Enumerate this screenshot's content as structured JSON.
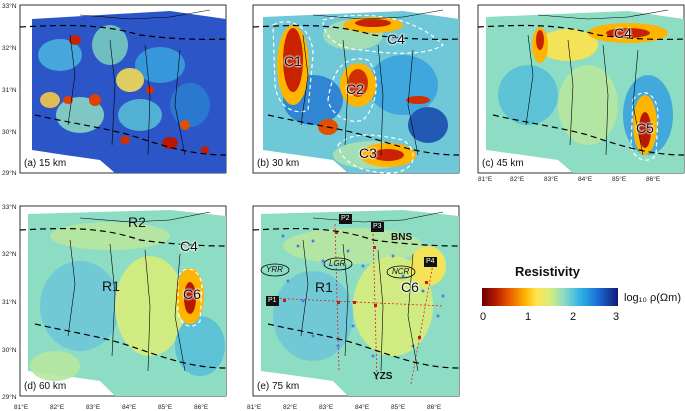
{
  "axes": {
    "lat_labels": [
      "33°N",
      "32°N",
      "31°N",
      "30°N",
      "29°N"
    ],
    "lon_labels": [
      "81°E",
      "82°E",
      "83°E",
      "84°E",
      "85°E",
      "86°E"
    ]
  },
  "panels": [
    {
      "label": "(a) 15 km",
      "depth": "15 km"
    },
    {
      "label": "(b) 30 km",
      "depth": "30 km"
    },
    {
      "label": "(c) 45 km",
      "depth": "45 km"
    },
    {
      "label": "(d) 60 km",
      "depth": "60 km"
    },
    {
      "label": "(e) 75 km",
      "depth": "75 km"
    }
  ],
  "anomalies": {
    "C1": "C1",
    "C2": "C2",
    "C3": "C3",
    "C4": "C4",
    "C5": "C5",
    "C6": "C6",
    "R1": "R1",
    "R2": "R2"
  },
  "features": {
    "bns": "BNS",
    "yzs": "YZS",
    "yrr": "YRR",
    "lgr": "LGR",
    "ncr": "NCR"
  },
  "profiles": [
    "P1",
    "P2",
    "P3",
    "P4"
  ],
  "legend": {
    "title": "Resistivity",
    "ticks": [
      "0",
      "1",
      "2",
      "3"
    ],
    "unit": "log₁₀ ρ(Ωm)"
  },
  "colors": {
    "low_resistivity": "#b31a00",
    "mid_resistivity": "#ffe44d",
    "high_resistivity": "#101a7a",
    "profile_line": "#e0201f",
    "stations": "#4a7df0"
  }
}
